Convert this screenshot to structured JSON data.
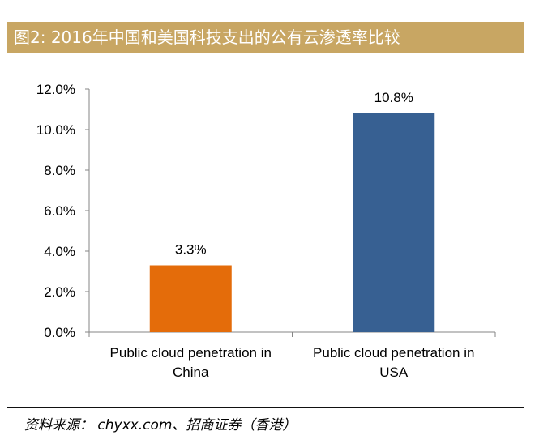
{
  "title": "图2: 2016年中国和美国科技支出的公有云渗透率比较",
  "source": "资料来源： chyxx.com、招商证券（香港）",
  "chart_data": {
    "type": "bar",
    "categories": [
      [
        "Public cloud penetration in",
        "China"
      ],
      [
        "Public cloud penetration in",
        "USA"
      ]
    ],
    "values": [
      3.3,
      10.8
    ],
    "data_labels": [
      "3.3%",
      "10.8%"
    ],
    "bar_colors": [
      "#e46c0a",
      "#376092"
    ],
    "ylim": [
      0,
      12
    ],
    "yticks": [
      0,
      2,
      4,
      6,
      8,
      10,
      12
    ],
    "ytick_labels": [
      "0.0%",
      "2.0%",
      "4.0%",
      "6.0%",
      "8.0%",
      "10.0%",
      "12.0%"
    ],
    "xlabel": "",
    "ylabel": "",
    "grid": false,
    "legend": false
  }
}
